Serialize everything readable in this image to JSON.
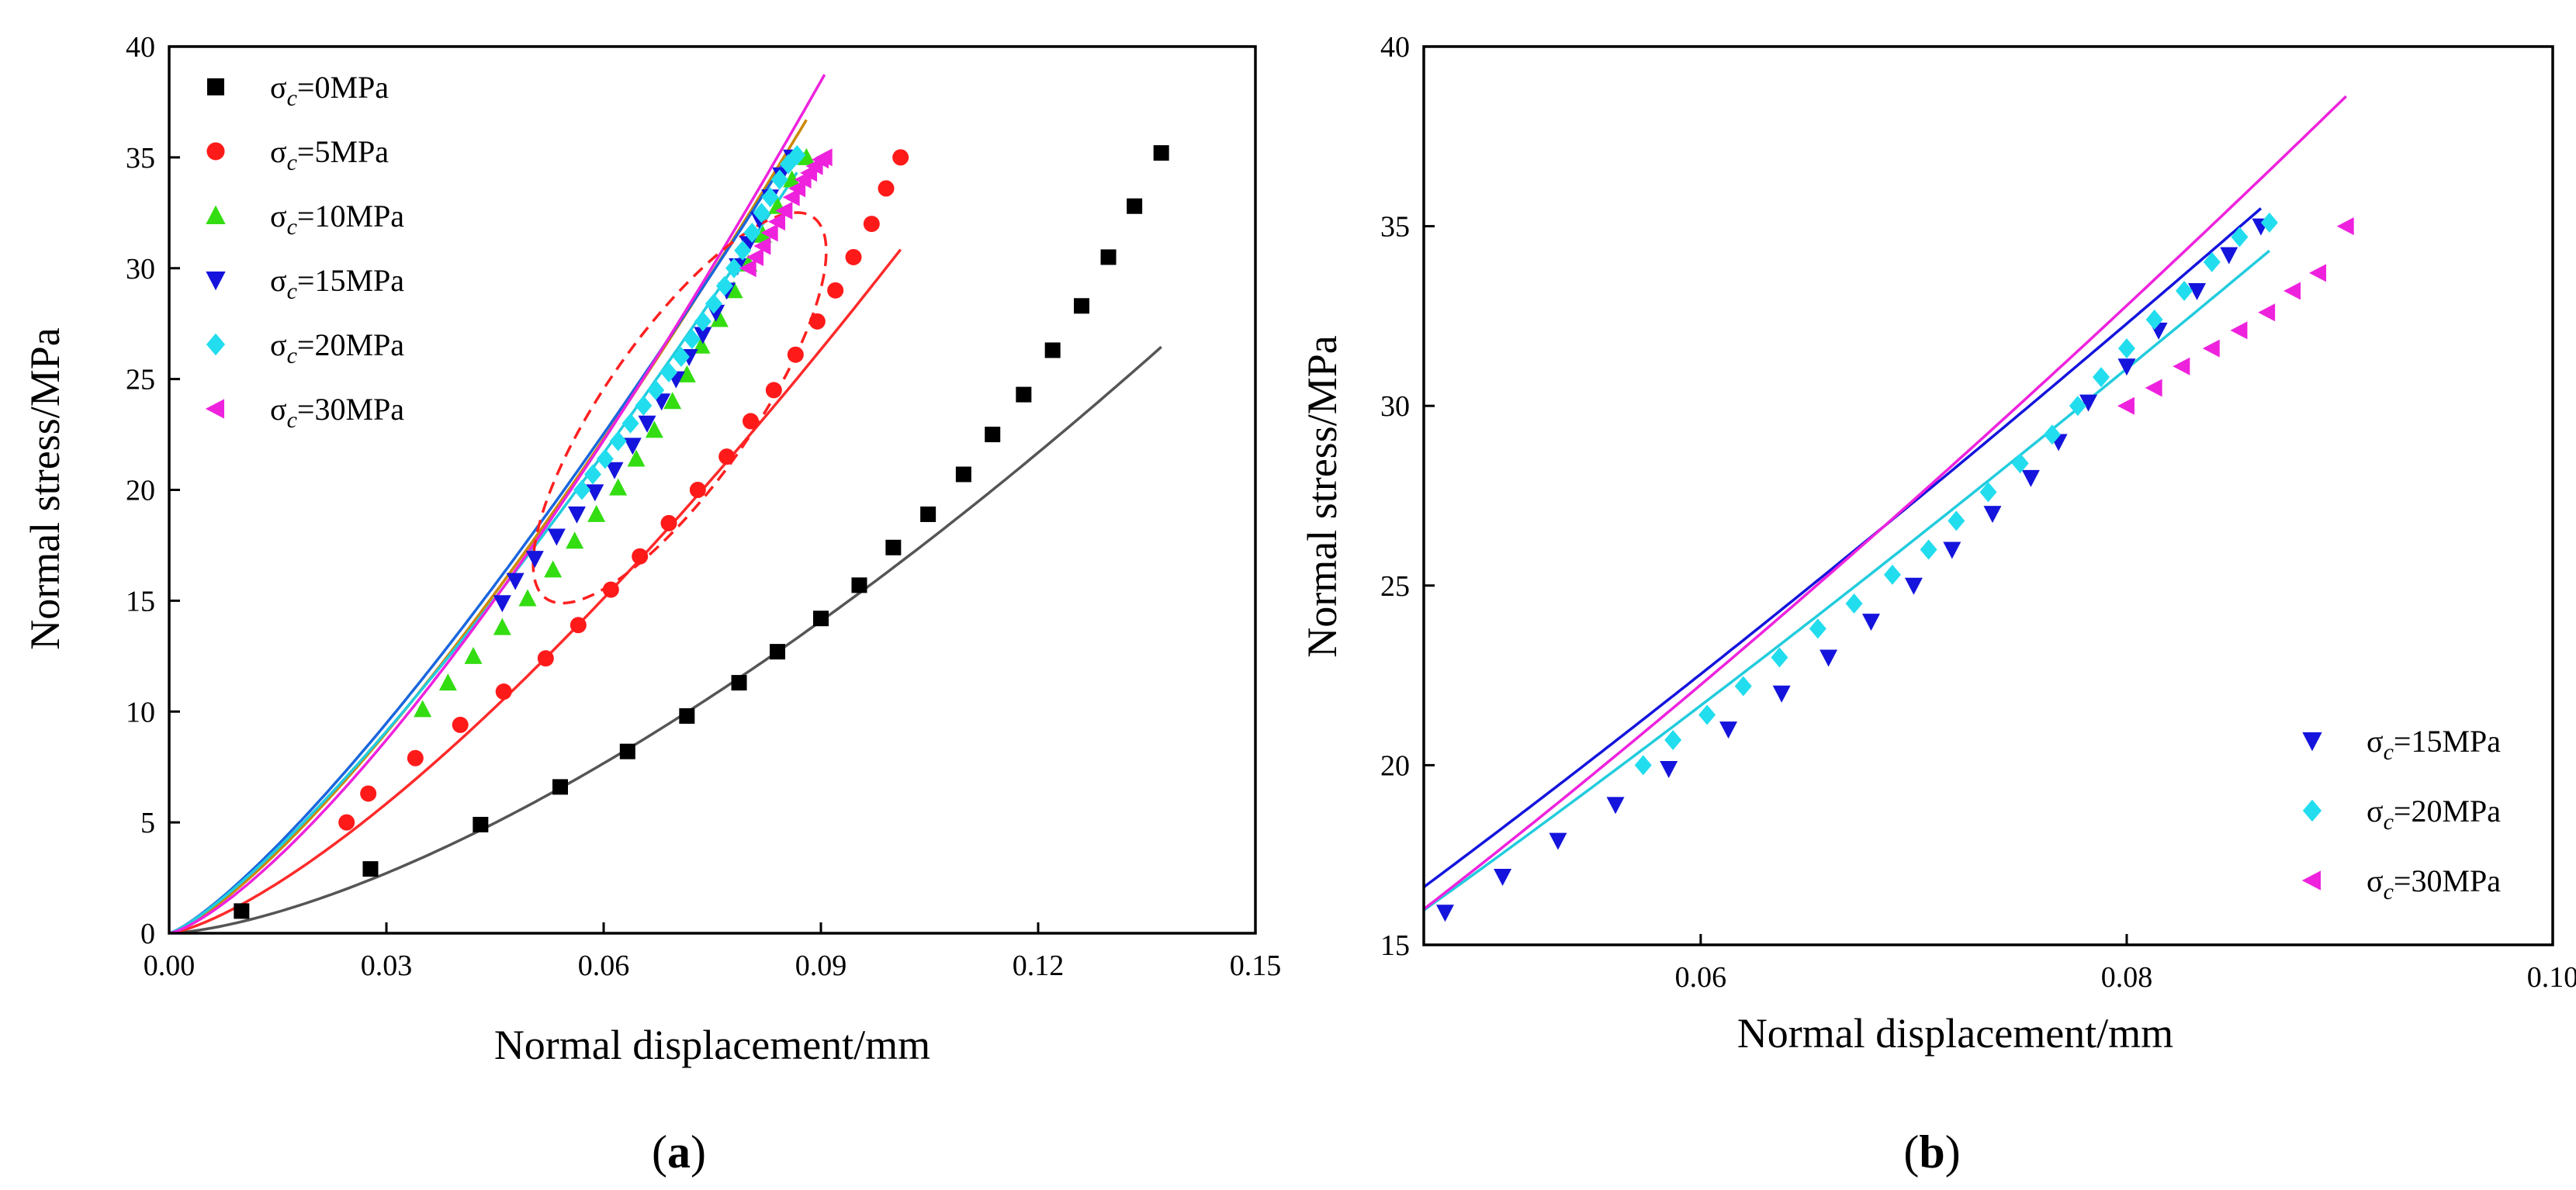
{
  "chart_data": [
    {
      "type": "scatter",
      "panel": "a",
      "panel_label": "(a)",
      "xlabel": "Normal displacement/mm",
      "ylabel": "Normal stress/MPa",
      "xlim": [
        0,
        0.15
      ],
      "ylim": [
        0,
        40
      ],
      "xticks": [
        0,
        0.03,
        0.06,
        0.09,
        0.12,
        0.15
      ],
      "xtick_labels": [
        "0.00",
        "0.03",
        "0.06",
        "0.09",
        "0.12",
        "0.15"
      ],
      "yticks": [
        0,
        5,
        10,
        15,
        20,
        25,
        30,
        35,
        40
      ],
      "ytick_labels": [
        "0",
        "5",
        "10",
        "15",
        "20",
        "25",
        "30",
        "35",
        "40"
      ],
      "legend_position": "top-left",
      "annotation": "dashed red ellipse around 10-30 MPa curves",
      "series": [
        {
          "name": "σc=0MPa",
          "sym": "σ",
          "sub": "c",
          "val": "=0MPa",
          "color": "#000000",
          "line_color": "#555555",
          "marker": "square",
          "x": [
            0.01,
            0.0278,
            0.043,
            0.054,
            0.0633,
            0.0715,
            0.0787,
            0.084,
            0.09,
            0.0953,
            0.1,
            0.1048,
            0.1097,
            0.1137,
            0.118,
            0.122,
            0.126,
            0.1297,
            0.1333,
            0.137
          ],
          "y": [
            1.0,
            2.9,
            4.9,
            6.6,
            8.2,
            9.8,
            11.3,
            12.7,
            14.2,
            15.7,
            17.4,
            18.9,
            20.7,
            22.5,
            24.3,
            26.3,
            28.3,
            30.5,
            32.8,
            35.2
          ],
          "fit_coef": [
            0,
            13.5,
            0.0875,
            1.5
          ]
        },
        {
          "name": "σc=5MPa",
          "sym": "σ",
          "sub": "c",
          "val": "=5MPa",
          "color": "#ff1a1a",
          "line_color": "#ff2a2a",
          "marker": "circle",
          "x": [
            0.0245,
            0.0275,
            0.034,
            0.0402,
            0.0462,
            0.052,
            0.0565,
            0.061,
            0.065,
            0.069,
            0.073,
            0.077,
            0.0803,
            0.0835,
            0.0865,
            0.0895,
            0.092,
            0.0945,
            0.097,
            0.099,
            0.101
          ],
          "y": [
            5.0,
            6.3,
            7.9,
            9.4,
            10.9,
            12.4,
            13.9,
            15.5,
            17.0,
            18.5,
            20.0,
            21.5,
            23.1,
            24.5,
            26.1,
            27.6,
            29.0,
            30.5,
            32.0,
            33.6,
            35.0
          ],
          "fit_coef": [
            0,
            14.63,
            0.0586,
            1.37
          ]
        },
        {
          "name": "σc=10MPa",
          "sym": "σ",
          "sub": "c",
          "val": "=10MPa",
          "color": "#33dd11",
          "line_color": "#cc8800",
          "marker": "triangle-up",
          "x": [
            0.035,
            0.0385,
            0.042,
            0.046,
            0.0495,
            0.053,
            0.056,
            0.059,
            0.062,
            0.0645,
            0.067,
            0.0695,
            0.0715,
            0.0735,
            0.076,
            0.078,
            0.08,
            0.082,
            0.084,
            0.086,
            0.088
          ],
          "y": [
            10.1,
            11.3,
            12.5,
            13.8,
            15.1,
            16.4,
            17.7,
            18.9,
            20.1,
            21.4,
            22.7,
            24.0,
            25.2,
            26.5,
            27.7,
            29.0,
            30.2,
            31.5,
            32.8,
            34.0,
            35.0
          ],
          "fit_coef": [
            0,
            14.55,
            0.0432,
            1.3
          ]
        },
        {
          "name": "σc=15MPa",
          "sym": "σ",
          "sub": "c",
          "val": "=15MPa",
          "color": "#1414dd",
          "line_color": "#1a66dd",
          "marker": "triangle-down",
          "x": [
            0.046,
            0.0478,
            0.0505,
            0.0535,
            0.0563,
            0.0588,
            0.0615,
            0.064,
            0.066,
            0.068,
            0.07,
            0.0718,
            0.0737,
            0.0755,
            0.077,
            0.0785,
            0.08,
            0.0815,
            0.083,
            0.0845,
            0.086
          ],
          "y": [
            14.9,
            15.9,
            16.9,
            17.9,
            18.9,
            19.9,
            20.9,
            22.0,
            23.0,
            24.0,
            25.0,
            26.0,
            27.0,
            28.0,
            29.0,
            30.1,
            31.1,
            32.2,
            33.2,
            34.2,
            35.0
          ],
          "fit_coef": [
            0,
            14.3,
            0.0417,
            1.25
          ]
        },
        {
          "name": "σc=20MPa",
          "sym": "σ",
          "sub": "c",
          "val": "=20MPa",
          "color": "#22ddee",
          "line_color": "#22ccdd",
          "marker": "diamond",
          "x": [
            0.057,
            0.0585,
            0.0602,
            0.062,
            0.0637,
            0.0655,
            0.0672,
            0.069,
            0.0707,
            0.0722,
            0.0737,
            0.0752,
            0.0767,
            0.078,
            0.0792,
            0.0805,
            0.0818,
            0.083,
            0.0843,
            0.0855,
            0.0867
          ],
          "y": [
            20.0,
            20.7,
            21.4,
            22.2,
            23.0,
            23.8,
            24.5,
            25.3,
            26.0,
            26.8,
            27.6,
            28.4,
            29.2,
            30.0,
            30.8,
            31.6,
            32.5,
            33.2,
            34.0,
            34.7,
            35.1
          ],
          "fit_coef": [
            0,
            14.2,
            0.0428,
            1.25
          ]
        },
        {
          "name": "σc=30MPa",
          "sym": "σ",
          "sub": "c",
          "val": "=30MPa",
          "color": "#ee22dd",
          "line_color": "#ee22dd",
          "marker": "triangle-left",
          "x": [
            0.08,
            0.081,
            0.082,
            0.083,
            0.084,
            0.085,
            0.086,
            0.0868,
            0.0876,
            0.0884,
            0.0892,
            0.09,
            0.0905
          ],
          "y": [
            30.0,
            30.5,
            31.0,
            31.6,
            32.1,
            32.6,
            33.2,
            33.6,
            34.0,
            34.3,
            34.6,
            34.9,
            35.0
          ],
          "fit_coef": [
            0,
            14.9,
            0.0446,
            1.35
          ]
        }
      ]
    },
    {
      "type": "scatter",
      "panel": "b",
      "panel_label": "(b)",
      "xlabel": "Normal displacement/mm",
      "ylabel": "Normal stress/MPa",
      "xlim": [
        0.047,
        0.1
      ],
      "ylim": [
        15,
        40
      ],
      "xticks": [
        0.06,
        0.08,
        0.1
      ],
      "xtick_labels": [
        "0.06",
        "0.08",
        "0.10"
      ],
      "yticks": [
        15,
        20,
        25,
        30,
        35,
        40
      ],
      "ytick_labels": [
        "15",
        "20",
        "25",
        "30",
        "35",
        "40"
      ],
      "legend_position": "bottom-right",
      "series": [
        {
          "name": "σc=15MPa",
          "sym": "σ",
          "sub": "c",
          "val": "=15MPa",
          "color": "#1414dd",
          "line_color": "#1414dd",
          "marker": "triangle-down",
          "x": [
            0.048,
            0.0507,
            0.0533,
            0.056,
            0.0585,
            0.0613,
            0.0638,
            0.066,
            0.068,
            0.07,
            0.0718,
            0.0737,
            0.0755,
            0.0768,
            0.0782,
            0.08,
            0.0815,
            0.0833,
            0.0848,
            0.0863
          ],
          "y": [
            15.9,
            16.9,
            17.9,
            18.9,
            19.9,
            21.0,
            22.0,
            23.0,
            24.0,
            25.0,
            26.0,
            27.0,
            28.0,
            29.0,
            30.1,
            31.1,
            32.1,
            33.2,
            34.2,
            35.0
          ],
          "fit_coef": [
            0,
            14.3,
            0.0417,
            1.25
          ]
        },
        {
          "name": "σc=20MPa",
          "sym": "σ",
          "sub": "c",
          "val": "=20MPa",
          "color": "#22ddee",
          "line_color": "#22ccdd",
          "marker": "diamond",
          "x": [
            0.0573,
            0.0587,
            0.0603,
            0.062,
            0.0637,
            0.0655,
            0.0672,
            0.069,
            0.0707,
            0.072,
            0.0735,
            0.075,
            0.0765,
            0.0777,
            0.0788,
            0.08,
            0.0813,
            0.0827,
            0.084,
            0.0853,
            0.0867
          ],
          "y": [
            20.0,
            20.7,
            21.4,
            22.2,
            23.0,
            23.8,
            24.5,
            25.3,
            26.0,
            26.8,
            27.6,
            28.4,
            29.2,
            30.0,
            30.8,
            31.6,
            32.4,
            33.2,
            34.0,
            34.7,
            35.1
          ],
          "fit_coef": [
            0,
            14.2,
            0.0428,
            1.25
          ]
        },
        {
          "name": "σc=30MPa",
          "sym": "σ",
          "sub": "c",
          "val": "=30MPa",
          "color": "#ee22dd",
          "line_color": "#ee22dd",
          "marker": "triangle-left",
          "x": [
            0.08,
            0.0813,
            0.0826,
            0.084,
            0.0853,
            0.0866,
            0.0878,
            0.089,
            0.0903
          ],
          "y": [
            30.0,
            30.5,
            31.1,
            31.6,
            32.1,
            32.6,
            33.2,
            33.7,
            35.0
          ],
          "fit_coef": [
            0,
            14.9,
            0.0446,
            1.35
          ]
        }
      ]
    }
  ]
}
